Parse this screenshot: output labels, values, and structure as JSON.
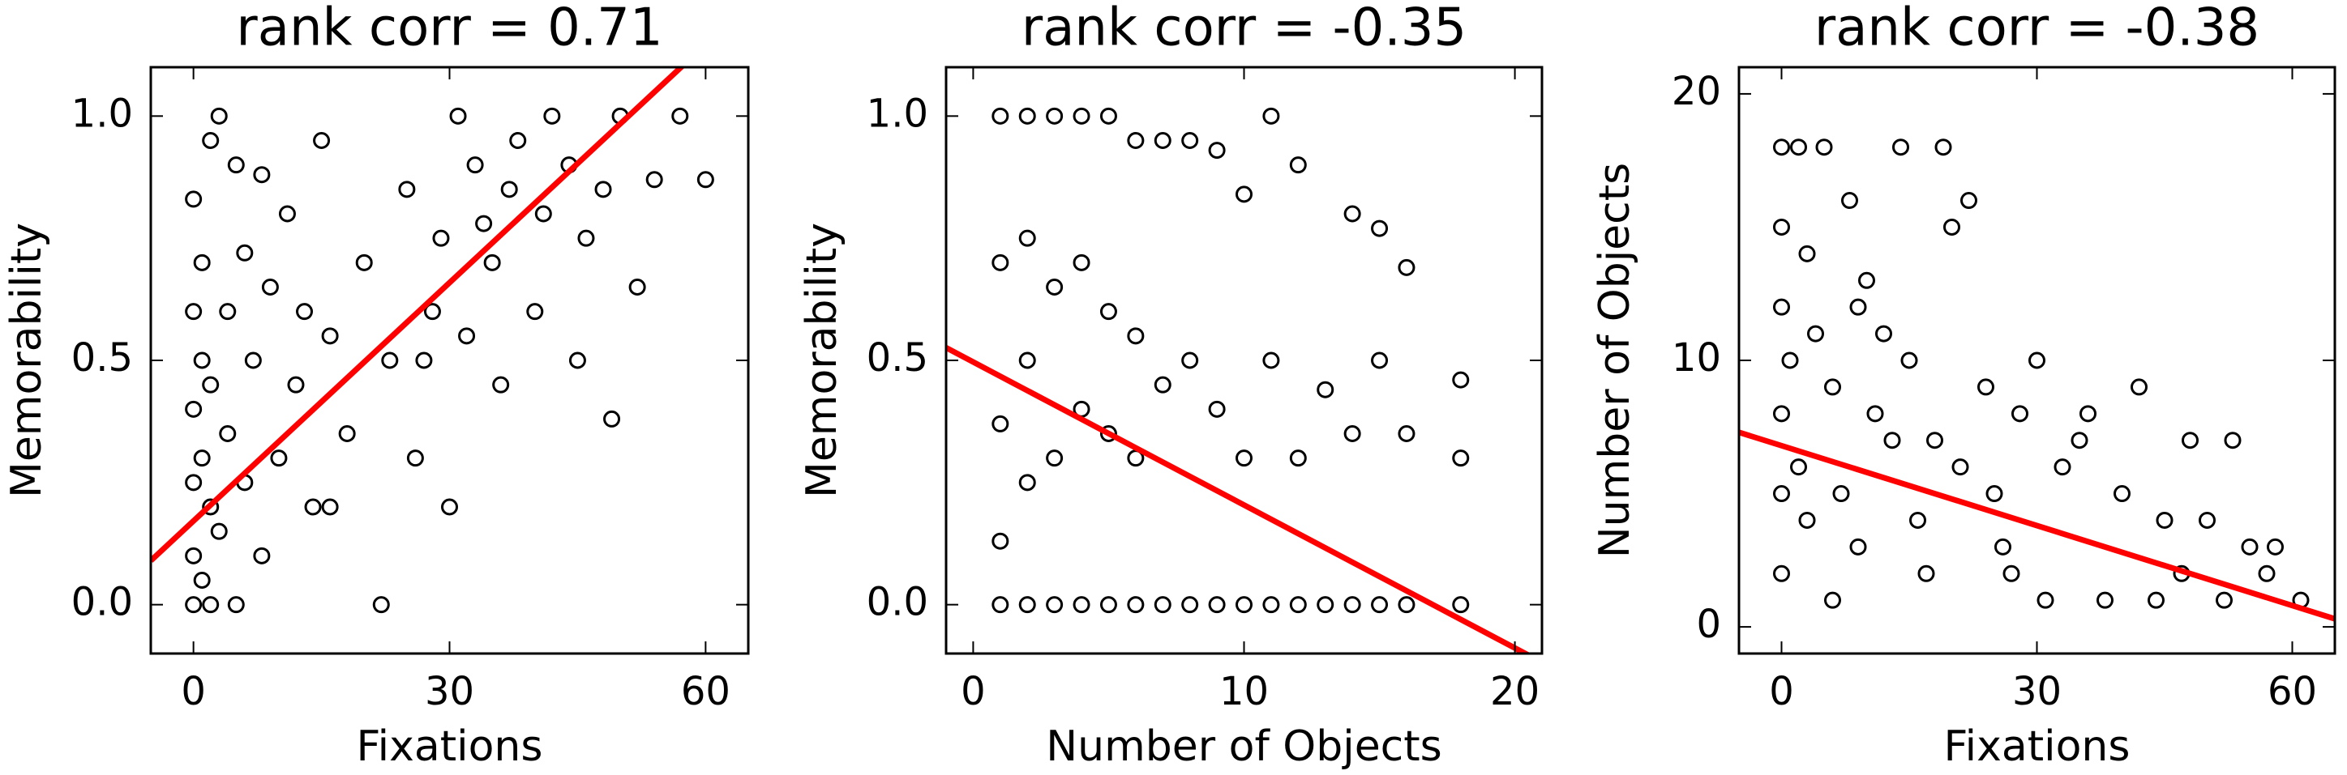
{
  "chart_data": [
    {
      "type": "scatter",
      "title": "rank corr = 0.71",
      "xlabel": "Fixations",
      "ylabel": "Memorability",
      "xlim": [
        -5,
        65
      ],
      "ylim": [
        -0.1,
        1.1
      ],
      "xticks": [
        0,
        30,
        60
      ],
      "yticks": [
        {
          "value": 0,
          "label": "0.0"
        },
        {
          "value": 0.5,
          "label": "0.5"
        },
        {
          "value": 1,
          "label": "1.0"
        }
      ],
      "series": [
        {
          "mode": "markers",
          "color": "#000000",
          "x": [
            0,
            0,
            0,
            0,
            0,
            0,
            1,
            1,
            1,
            1,
            2,
            2,
            2,
            3,
            3,
            4,
            4,
            5,
            5,
            6,
            6,
            7,
            8,
            9,
            10,
            11,
            12,
            13,
            14,
            15,
            16,
            18,
            20,
            22,
            23,
            25,
            26,
            28,
            29,
            30,
            31,
            32,
            33,
            35,
            36,
            37,
            38,
            40,
            41,
            42,
            44,
            45,
            46,
            48,
            49,
            50,
            52,
            54,
            57,
            60,
            2,
            8,
            16,
            27,
            34
          ],
          "values": [
            0.0,
            0.1,
            0.25,
            0.4,
            0.6,
            0.83,
            0.05,
            0.3,
            0.5,
            0.7,
            0.0,
            0.2,
            0.45,
            0.15,
            1.0,
            0.35,
            0.6,
            0.0,
            0.9,
            0.25,
            0.72,
            0.5,
            0.1,
            0.65,
            0.3,
            0.8,
            0.45,
            0.6,
            0.2,
            0.95,
            0.55,
            0.35,
            0.7,
            0.0,
            0.5,
            0.85,
            0.3,
            0.6,
            0.75,
            0.2,
            1.0,
            0.55,
            0.9,
            0.7,
            0.45,
            0.85,
            0.95,
            0.6,
            0.8,
            1.0,
            0.9,
            0.5,
            0.75,
            0.85,
            0.38,
            1.0,
            0.65,
            0.87,
            1.0,
            0.87,
            0.95,
            0.88,
            0.2,
            0.5,
            0.78
          ]
        },
        {
          "mode": "line",
          "color": "#ff0000",
          "x": [
            -5,
            65
          ],
          "values": [
            0.09,
            1.228
          ]
        }
      ]
    },
    {
      "type": "scatter",
      "title": "rank corr = -0.35",
      "xlabel": "Number of Objects",
      "ylabel": "Memorability",
      "xlim": [
        -1,
        21
      ],
      "ylim": [
        -0.1,
        1.1
      ],
      "xticks": [
        0,
        10,
        20
      ],
      "yticks": [
        {
          "value": 0,
          "label": "0.0"
        },
        {
          "value": 0.5,
          "label": "0.5"
        },
        {
          "value": 1,
          "label": "1.0"
        }
      ],
      "series": [
        {
          "mode": "markers",
          "color": "#000000",
          "x": [
            1,
            1,
            1,
            1,
            1,
            2,
            2,
            2,
            2,
            2,
            3,
            3,
            3,
            3,
            4,
            4,
            4,
            4,
            5,
            5,
            5,
            5,
            6,
            6,
            6,
            6,
            7,
            7,
            7,
            8,
            8,
            8,
            9,
            9,
            9,
            10,
            10,
            10,
            11,
            11,
            11,
            12,
            12,
            12,
            13,
            13,
            14,
            14,
            14,
            15,
            15,
            15,
            16,
            16,
            16,
            18,
            18,
            18
          ],
          "values": [
            0.0,
            0.13,
            0.37,
            0.7,
            1.0,
            0.0,
            0.25,
            0.5,
            0.75,
            1.0,
            0.0,
            0.3,
            0.65,
            1.0,
            0.0,
            0.4,
            0.7,
            1.0,
            0.0,
            0.35,
            0.6,
            1.0,
            0.0,
            0.3,
            0.55,
            0.95,
            0.0,
            0.45,
            0.95,
            0.0,
            0.5,
            0.95,
            0.0,
            0.4,
            0.93,
            0.0,
            0.3,
            0.84,
            0.0,
            0.5,
            1.0,
            0.0,
            0.3,
            0.9,
            0.0,
            0.44,
            0.0,
            0.35,
            0.8,
            0.0,
            0.5,
            0.77,
            0.0,
            0.69,
            0.35,
            0.0,
            0.3,
            0.46
          ]
        },
        {
          "mode": "line",
          "color": "#ff0000",
          "x": [
            -1,
            21
          ],
          "values": [
            0.526,
            -0.118
          ]
        }
      ]
    },
    {
      "type": "scatter",
      "title": "rank corr = -0.38",
      "xlabel": "Fixations",
      "ylabel": "Number of Objects",
      "xlim": [
        -5,
        65
      ],
      "ylim": [
        -1,
        21
      ],
      "xticks": [
        0,
        30,
        60
      ],
      "yticks": [
        0,
        10,
        20
      ],
      "series": [
        {
          "mode": "markers",
          "color": "#000000",
          "x": [
            0,
            0,
            0,
            0,
            0,
            0,
            2,
            3,
            5,
            8,
            10,
            12,
            14,
            19,
            20,
            22,
            1,
            4,
            6,
            9,
            11,
            15,
            18,
            24,
            30,
            2,
            7,
            13,
            21,
            28,
            35,
            42,
            48,
            53,
            3,
            16,
            25,
            33,
            40,
            45,
            50,
            55,
            58,
            6,
            17,
            26,
            38,
            47,
            52,
            57,
            61,
            9,
            31,
            44,
            27,
            36
          ],
          "values": [
            2,
            5,
            8,
            12,
            15,
            18,
            18,
            14,
            18,
            16,
            13,
            11,
            18,
            18,
            15,
            16,
            10,
            11,
            9,
            12,
            8,
            10,
            7,
            9,
            10,
            6,
            5,
            7,
            6,
            8,
            7,
            9,
            7,
            7,
            4,
            4,
            5,
            6,
            5,
            4,
            4,
            3,
            3,
            1,
            2,
            3,
            1,
            2,
            1,
            2,
            1,
            3,
            1,
            1,
            2,
            8
          ]
        },
        {
          "mode": "line",
          "color": "#ff0000",
          "x": [
            -5,
            65
          ],
          "values": [
            7.3,
            0.3
          ]
        }
      ]
    }
  ]
}
